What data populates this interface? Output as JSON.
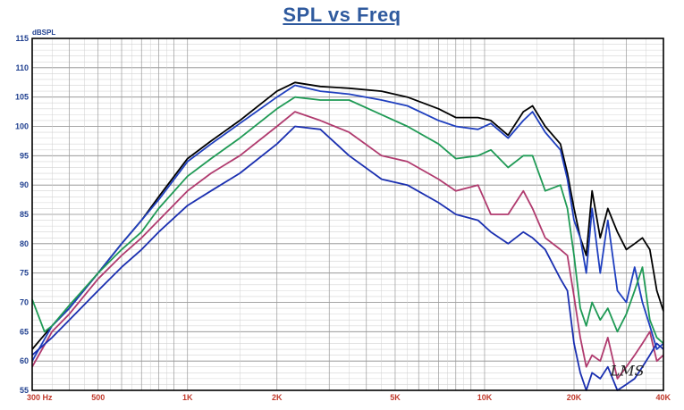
{
  "title": "SPL vs Freq",
  "signature": "LMS",
  "chart_data": {
    "type": "line",
    "title": "SPL vs Freq",
    "xlabel": "",
    "ylabel": "dBSPL",
    "x_scale": "log",
    "xlim": [
      300,
      40000
    ],
    "ylim": [
      55,
      115
    ],
    "grid": true,
    "x_tick_labels": [
      {
        "value": 300,
        "label": "300 Hz"
      },
      {
        "value": 500,
        "label": "500"
      },
      {
        "value": 1000,
        "label": "1K"
      },
      {
        "value": 2000,
        "label": "2K"
      },
      {
        "value": 5000,
        "label": "5K"
      },
      {
        "value": 10000,
        "label": "10K"
      },
      {
        "value": 20000,
        "label": "20K"
      },
      {
        "value": 40000,
        "label": "40K"
      }
    ],
    "y_ticks": [
      55,
      60,
      65,
      70,
      75,
      80,
      85,
      90,
      95,
      100,
      105,
      110,
      115
    ],
    "series": [
      {
        "color": "#000000",
        "points": [
          [
            300,
            62
          ],
          [
            350,
            66
          ],
          [
            400,
            69
          ],
          [
            500,
            75
          ],
          [
            600,
            80
          ],
          [
            700,
            84
          ],
          [
            800,
            88
          ],
          [
            1000,
            94.5
          ],
          [
            1200,
            97.5
          ],
          [
            1500,
            101
          ],
          [
            2000,
            106
          ],
          [
            2300,
            107.5
          ],
          [
            2800,
            106.8
          ],
          [
            3500,
            106.5
          ],
          [
            4500,
            106
          ],
          [
            5500,
            105
          ],
          [
            7000,
            103
          ],
          [
            8000,
            101.5
          ],
          [
            9500,
            101.5
          ],
          [
            10500,
            101
          ],
          [
            12000,
            98.5
          ],
          [
            13500,
            102.5
          ],
          [
            14500,
            103.5
          ],
          [
            16000,
            100
          ],
          [
            18000,
            97
          ],
          [
            19000,
            92
          ],
          [
            20000,
            86
          ],
          [
            21000,
            81
          ],
          [
            22000,
            78
          ],
          [
            23000,
            89
          ],
          [
            24500,
            81
          ],
          [
            26000,
            86
          ],
          [
            28000,
            82
          ],
          [
            30000,
            79
          ],
          [
            32000,
            80
          ],
          [
            34000,
            81
          ],
          [
            36000,
            79
          ],
          [
            38000,
            72
          ],
          [
            40000,
            68.5
          ]
        ]
      },
      {
        "color": "#1f3fbf",
        "points": [
          [
            300,
            60
          ],
          [
            350,
            66
          ],
          [
            400,
            69
          ],
          [
            500,
            75
          ],
          [
            600,
            80
          ],
          [
            700,
            84
          ],
          [
            800,
            87.5
          ],
          [
            1000,
            94
          ],
          [
            1200,
            97
          ],
          [
            1500,
            100.5
          ],
          [
            2000,
            105
          ],
          [
            2300,
            107
          ],
          [
            2800,
            106
          ],
          [
            3500,
            105.5
          ],
          [
            4500,
            104.5
          ],
          [
            5500,
            103.5
          ],
          [
            7000,
            101
          ],
          [
            8000,
            100
          ],
          [
            9500,
            99.5
          ],
          [
            10500,
            100.5
          ],
          [
            12000,
            98
          ],
          [
            13500,
            101
          ],
          [
            14500,
            102.5
          ],
          [
            16000,
            99
          ],
          [
            18000,
            96
          ],
          [
            19000,
            91
          ],
          [
            20000,
            84
          ],
          [
            21000,
            81
          ],
          [
            22000,
            75
          ],
          [
            23000,
            86
          ],
          [
            24500,
            75
          ],
          [
            26000,
            84
          ],
          [
            28000,
            72
          ],
          [
            30000,
            70
          ],
          [
            32000,
            76
          ],
          [
            34000,
            70
          ],
          [
            36000,
            66
          ],
          [
            38000,
            62
          ],
          [
            40000,
            63
          ]
        ]
      },
      {
        "color": "#1f9a55",
        "points": [
          [
            300,
            70.5
          ],
          [
            330,
            65
          ],
          [
            350,
            66
          ],
          [
            400,
            69.5
          ],
          [
            500,
            75
          ],
          [
            600,
            79
          ],
          [
            700,
            82
          ],
          [
            800,
            86
          ],
          [
            1000,
            91.5
          ],
          [
            1200,
            94.5
          ],
          [
            1500,
            98
          ],
          [
            2000,
            103
          ],
          [
            2300,
            105
          ],
          [
            2800,
            104.5
          ],
          [
            3500,
            104.5
          ],
          [
            4500,
            102
          ],
          [
            5500,
            100
          ],
          [
            7000,
            97
          ],
          [
            8000,
            94.5
          ],
          [
            9500,
            95
          ],
          [
            10500,
            96
          ],
          [
            12000,
            93
          ],
          [
            13500,
            95
          ],
          [
            14500,
            95
          ],
          [
            16000,
            89
          ],
          [
            18000,
            90
          ],
          [
            19000,
            86
          ],
          [
            20000,
            78
          ],
          [
            21000,
            69
          ],
          [
            22000,
            66
          ],
          [
            23000,
            70
          ],
          [
            24500,
            67
          ],
          [
            26000,
            69
          ],
          [
            28000,
            65
          ],
          [
            30000,
            68
          ],
          [
            32000,
            72
          ],
          [
            34000,
            76
          ],
          [
            36000,
            67
          ],
          [
            38000,
            64
          ],
          [
            40000,
            63
          ]
        ]
      },
      {
        "color": "#b03a6e",
        "points": [
          [
            300,
            59
          ],
          [
            350,
            65
          ],
          [
            400,
            68
          ],
          [
            500,
            74
          ],
          [
            600,
            78
          ],
          [
            700,
            81
          ],
          [
            800,
            84
          ],
          [
            1000,
            89
          ],
          [
            1200,
            92
          ],
          [
            1500,
            95
          ],
          [
            2000,
            100
          ],
          [
            2300,
            102.5
          ],
          [
            2800,
            101
          ],
          [
            3500,
            99
          ],
          [
            4500,
            95
          ],
          [
            5500,
            94
          ],
          [
            7000,
            91
          ],
          [
            8000,
            89
          ],
          [
            9500,
            90
          ],
          [
            10500,
            85
          ],
          [
            12000,
            85
          ],
          [
            13500,
            89
          ],
          [
            14500,
            86
          ],
          [
            16000,
            81
          ],
          [
            18000,
            79
          ],
          [
            19000,
            78
          ],
          [
            20000,
            71
          ],
          [
            21000,
            64
          ],
          [
            22000,
            59
          ],
          [
            23000,
            61
          ],
          [
            24500,
            60
          ],
          [
            26000,
            64
          ],
          [
            28000,
            57
          ],
          [
            30000,
            59
          ],
          [
            32000,
            61
          ],
          [
            34000,
            63
          ],
          [
            36000,
            65
          ],
          [
            38000,
            60
          ],
          [
            40000,
            61
          ]
        ]
      },
      {
        "color": "#1a2fb0",
        "points": [
          [
            300,
            61
          ],
          [
            350,
            64
          ],
          [
            400,
            67
          ],
          [
            500,
            72
          ],
          [
            600,
            76
          ],
          [
            700,
            79
          ],
          [
            800,
            82
          ],
          [
            1000,
            86.5
          ],
          [
            1200,
            89
          ],
          [
            1500,
            92
          ],
          [
            2000,
            97
          ],
          [
            2300,
            100
          ],
          [
            2800,
            99.5
          ],
          [
            3500,
            95
          ],
          [
            4500,
            91
          ],
          [
            5500,
            90
          ],
          [
            7000,
            87
          ],
          [
            8000,
            85
          ],
          [
            9500,
            84
          ],
          [
            10500,
            82
          ],
          [
            12000,
            80
          ],
          [
            13500,
            82
          ],
          [
            14500,
            81
          ],
          [
            16000,
            79
          ],
          [
            18000,
            74
          ],
          [
            19000,
            72
          ],
          [
            20000,
            63
          ],
          [
            21000,
            58
          ],
          [
            22000,
            55
          ],
          [
            23000,
            58
          ],
          [
            24500,
            57
          ],
          [
            26000,
            59
          ],
          [
            28000,
            55
          ],
          [
            30000,
            56
          ],
          [
            32000,
            57
          ],
          [
            34000,
            59
          ],
          [
            36000,
            61
          ],
          [
            38000,
            63
          ],
          [
            40000,
            62
          ]
        ]
      }
    ]
  }
}
